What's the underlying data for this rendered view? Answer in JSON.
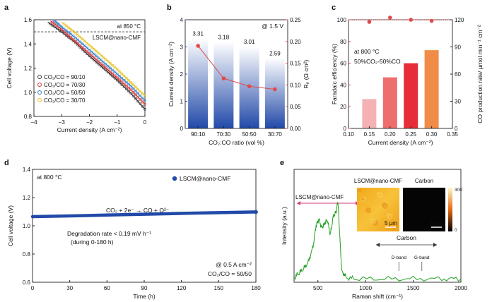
{
  "panel_labels": {
    "a": "a",
    "b": "b",
    "c": "c",
    "d": "d",
    "e": "e"
  },
  "colors": {
    "c90": "#333333",
    "c70": "#e03030",
    "c50": "#2f7fc8",
    "c30": "#e8c020",
    "blue": "#2149a8",
    "red": "#e04a4a",
    "green": "#20a020"
  },
  "chart_data": [
    {
      "type": "line",
      "panel": "a",
      "xlabel": "Current density (A cm⁻²)",
      "ylabel": "Cell voltage (V)",
      "xlim": [
        -4,
        0
      ],
      "ylim": [
        0.8,
        1.6
      ],
      "xticks": [
        "-4",
        "-3",
        "-2",
        "-1",
        "0"
      ],
      "yticks": [
        "0.8",
        "1.0",
        "1.2",
        "1.4",
        "1.6"
      ],
      "annotation_temp": "at 850 °C",
      "annotation_ref": "LSCM@nano-CMF",
      "ref_line_voltage": 1.5,
      "series": [
        {
          "name": "CO₂/CO = 90/10",
          "x": [
            0,
            -0.5,
            -1,
            -1.5,
            -2,
            -2.5,
            -3,
            -3.5
          ],
          "y": [
            0.86,
            0.99,
            1.1,
            1.2,
            1.3,
            1.41,
            1.5,
            1.58
          ]
        },
        {
          "name": "CO₂/CO = 70/30",
          "x": [
            0,
            -0.5,
            -1,
            -1.5,
            -2,
            -2.5,
            -3,
            -3.4
          ],
          "y": [
            0.9,
            1.02,
            1.12,
            1.22,
            1.32,
            1.42,
            1.52,
            1.59
          ]
        },
        {
          "name": "CO₂/CO = 50/50",
          "x": [
            0,
            -0.5,
            -1,
            -1.5,
            -2,
            -2.5,
            -3,
            -3.3
          ],
          "y": [
            0.93,
            1.05,
            1.15,
            1.25,
            1.35,
            1.45,
            1.54,
            1.6
          ]
        },
        {
          "name": "CO₂/CO = 30/70",
          "x": [
            0,
            -0.5,
            -1,
            -1.5,
            -2,
            -2.5,
            -3
          ],
          "y": [
            0.97,
            1.08,
            1.19,
            1.29,
            1.39,
            1.49,
            1.58
          ]
        }
      ]
    },
    {
      "type": "bar",
      "panel": "b",
      "categories": [
        "90:10",
        "70:30",
        "50:50",
        "30:70"
      ],
      "values": [
        3.31,
        3.18,
        3.01,
        2.59
      ],
      "value_labels": [
        "3.31",
        "3.18",
        "3.01",
        "2.59"
      ],
      "xlabel": "CO₂:CO ratio (vol %)",
      "ylabel": "Current density (A cm⁻²)",
      "ylim": [
        0,
        4
      ],
      "yticks": [
        "0",
        "1",
        "2",
        "3",
        "4"
      ],
      "y2label": "Rₚ (Ω cm²)",
      "y2lim": [
        0,
        0.25
      ],
      "y2ticks": [
        "0.00",
        "0.05",
        "0.10",
        "0.15",
        "0.20",
        "0.25"
      ],
      "y2_values": [
        0.19,
        0.115,
        0.097,
        0.09
      ],
      "annotation": "@ 1.5 V"
    },
    {
      "type": "bar",
      "panel": "c",
      "x": [
        0.15,
        0.2,
        0.25,
        0.3
      ],
      "values": [
        27,
        47,
        60,
        72
      ],
      "bar_colors": [
        "#f4b2b2",
        "#ee6e6e",
        "#e62e3a",
        "#f08c48"
      ],
      "xlabel": "Current density (A cm⁻²)",
      "xlim": [
        0.1,
        0.35
      ],
      "xticks": [
        "0.10",
        "0.15",
        "0.20",
        "0.25",
        "0.30",
        "0.35"
      ],
      "ylabel": "Faradaic efficiency (%)",
      "ylim": [
        0,
        100
      ],
      "yticks": [
        "0",
        "20",
        "40",
        "60",
        "80",
        "100"
      ],
      "y2label": "CO production rate/ μmol min⁻¹ cm⁻²",
      "y2lim": [
        0,
        120
      ],
      "y2ticks": [
        "0",
        "30",
        "60",
        "90",
        "120"
      ],
      "fe_points": [
        98,
        102,
        100,
        99
      ],
      "annotation1": "at 800 °C",
      "annotation2": "50%CO₂-50%CO"
    },
    {
      "type": "line",
      "panel": "d",
      "xlabel": "Time (h)",
      "ylabel": "Cell voltage (V)",
      "xlim": [
        0,
        180
      ],
      "ylim": [
        0.6,
        1.4
      ],
      "xticks": [
        "0",
        "30",
        "60",
        "90",
        "120",
        "150",
        "180"
      ],
      "yticks": [
        "0.6",
        "0.8",
        "1.0",
        "1.2",
        "1.4"
      ],
      "series": [
        {
          "name": "LSCM@nano-CMF",
          "x": [
            0,
            30,
            60,
            90,
            120,
            150,
            180
          ],
          "y": [
            1.065,
            1.07,
            1.076,
            1.082,
            1.088,
            1.093,
            1.098
          ]
        }
      ],
      "legend": "LSCM@nano-CMF",
      "annotation_temp": "at 800 °C",
      "reaction": "CO₂ + 2e⁻ → CO + O²⁻",
      "degradation": "Degradation rate < 0.19 mV h⁻¹",
      "degradation_period": "(during 0-180 h)",
      "condition1": "@ 0.5 A cm⁻²",
      "condition2": "CO₂/CO = 50/50"
    },
    {
      "type": "line",
      "panel": "e",
      "xlabel": "Raman shift (cm⁻¹)",
      "ylabel": "Intensity (a.u.)",
      "xlim": [
        250,
        2000
      ],
      "xticks": [
        "500",
        "1000",
        "1500",
        "2000"
      ],
      "series": [
        {
          "name": "Raman",
          "x": [
            250,
            300,
            350,
            400,
            450,
            480,
            510,
            540,
            570,
            600,
            630,
            660,
            690,
            710,
            730,
            750,
            800,
            900,
            1200,
            1500,
            1800,
            2000
          ],
          "y": [
            0.04,
            0.08,
            0.12,
            0.18,
            0.32,
            0.5,
            0.56,
            0.48,
            0.52,
            0.55,
            0.42,
            0.58,
            0.62,
            0.72,
            0.4,
            0.1,
            0.04,
            0.03,
            0.03,
            0.03,
            0.03,
            0.03
          ]
        }
      ],
      "left_label": "LSCM@nano-CMF",
      "inset1_title": "LSCM@nano-CMF",
      "inset2_title": "Carbon",
      "scale_bar": "5 μm",
      "colorbar_max": "300",
      "colorbar_min": "0",
      "carbon_label": "Carbon",
      "d_band": "D-band",
      "g_band": "G-band"
    }
  ]
}
